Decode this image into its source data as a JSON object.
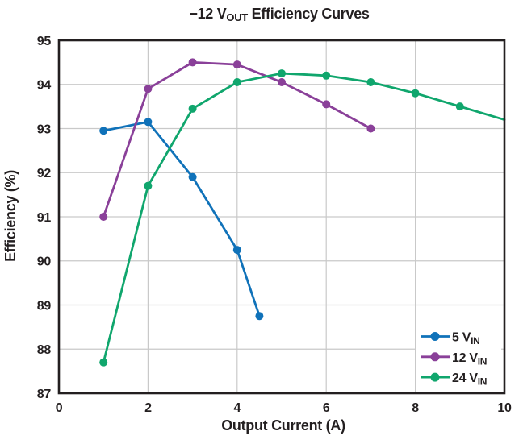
{
  "chart_data": {
    "type": "line",
    "title": {
      "main": "−12 V",
      "sub": "OUT",
      "rest": " Efficiency Curves"
    },
    "xlabel": "Output Current (A)",
    "ylabel": "Efficiency (%)",
    "xlim": [
      0,
      10
    ],
    "ylim": [
      87,
      95
    ],
    "xticks": [
      0,
      2,
      4,
      6,
      8,
      10
    ],
    "yticks": [
      87,
      88,
      89,
      90,
      91,
      92,
      93,
      94,
      95
    ],
    "grid": {
      "x": [
        2,
        4,
        6,
        8
      ],
      "y": [
        88,
        89,
        90,
        91,
        92,
        93,
        94
      ]
    },
    "grid_on": true,
    "axis_color": "#231f20",
    "grid_color": "#c9c9c9",
    "text_color": "#231f20",
    "background_color": "#ffffff",
    "legend_position": "bottom-right",
    "series": [
      {
        "name_main": "5 V",
        "name_sub": "IN",
        "color": "#1072b9",
        "x": [
          1,
          2,
          3,
          4,
          4.5
        ],
        "y": [
          92.95,
          93.15,
          91.9,
          90.25,
          88.75
        ],
        "skip_last_marker": false
      },
      {
        "name_main": "12 V",
        "name_sub": "IN",
        "color": "#8a4099",
        "x": [
          1,
          2,
          3,
          4,
          5,
          6,
          7
        ],
        "y": [
          91.0,
          93.9,
          94.5,
          94.45,
          94.05,
          93.55,
          93.0
        ],
        "skip_last_marker": false
      },
      {
        "name_main": "24 V",
        "name_sub": "IN",
        "color": "#10a66d",
        "x": [
          1,
          2,
          3,
          4,
          5,
          6,
          7,
          8,
          9,
          10
        ],
        "y": [
          87.7,
          91.7,
          93.45,
          94.05,
          94.25,
          94.2,
          94.05,
          93.8,
          93.5,
          93.2
        ],
        "skip_last_marker": true
      }
    ]
  }
}
